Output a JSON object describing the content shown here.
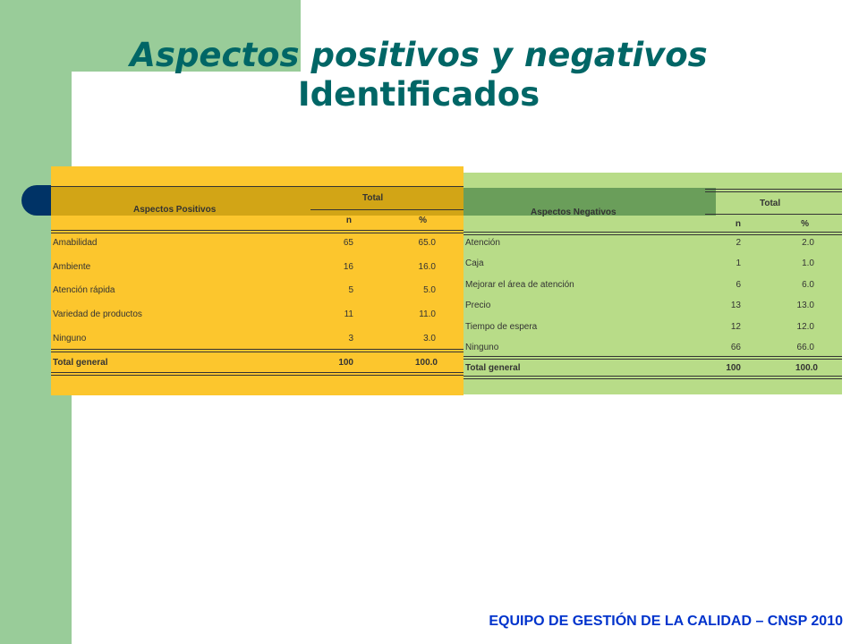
{
  "title": {
    "line1": "Aspectos positivos y negativos",
    "line2": "Identificados"
  },
  "footer": "EQUIPO DE GESTIÓN DE LA CALIDAD – CNSP 2010",
  "positivos": {
    "header": "Aspectos Positivos",
    "total_label": "Total",
    "col_n": "n",
    "col_pct": "%",
    "rows": [
      {
        "label": "Amabilidad",
        "n": "65",
        "pct": "65.0"
      },
      {
        "label": "Ambiente",
        "n": "16",
        "pct": "16.0"
      },
      {
        "label": "Atención rápida",
        "n": "5",
        "pct": "5.0"
      },
      {
        "label": "Variedad de productos",
        "n": "11",
        "pct": "11.0"
      },
      {
        "label": "Ninguno",
        "n": "3",
        "pct": "3.0"
      }
    ],
    "total_row": {
      "label": "Total general",
      "n": "100",
      "pct": "100.0"
    }
  },
  "negativos": {
    "header": "Aspectos Negativos",
    "total_label": "Total",
    "col_n": "n",
    "col_pct": "%",
    "rows": [
      {
        "label": "Atención",
        "n": "2",
        "pct": "2.0"
      },
      {
        "label": "Caja",
        "n": "1",
        "pct": "1.0"
      },
      {
        "label": "Mejorar el área de atención",
        "n": "6",
        "pct": "6.0"
      },
      {
        "label": "Precio",
        "n": "13",
        "pct": "13.0"
      },
      {
        "label": "Tiempo de espera",
        "n": "12",
        "pct": "12.0"
      },
      {
        "label": "Ninguno",
        "n": "66",
        "pct": "66.0"
      }
    ],
    "total_row": {
      "label": "Total general",
      "n": "100",
      "pct": "100.0"
    }
  },
  "colors": {
    "green_bg": "#99cc99",
    "title": "#006666",
    "footer": "#0033cc",
    "positivos_bg": "#fcc62d",
    "negativos_bg": "#b8dc88",
    "blue_bar": "#003366"
  }
}
